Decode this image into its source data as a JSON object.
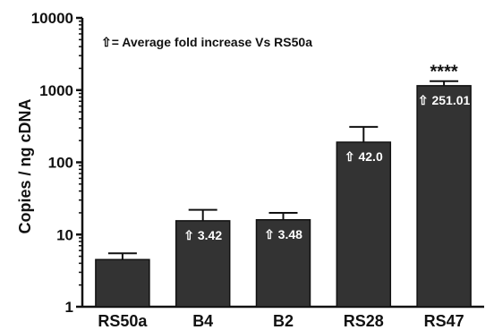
{
  "chart_data": {
    "type": "bar",
    "ylabel": "Copies / ng cDNA",
    "yscale": "log",
    "ylim": [
      1,
      10000
    ],
    "yticks": [
      "1",
      "10",
      "100",
      "1000",
      "10000"
    ],
    "categories": [
      "RS50a",
      "B4",
      "B2",
      "RS28",
      "RS47"
    ],
    "values": [
      4.5,
      15.5,
      16,
      190,
      1150
    ],
    "error_upper": [
      5.5,
      22,
      20,
      310,
      1330
    ],
    "bar_labels": [
      "",
      "⇧ 3.42",
      "⇧ 3.48",
      "⇧ 42.0",
      "⇧ 251.01"
    ],
    "significance": [
      "",
      "",
      "",
      "",
      "****"
    ],
    "legend_text": "⇧= Average fold increase Vs RS50a",
    "grid": false,
    "bar_color": "#333333"
  }
}
